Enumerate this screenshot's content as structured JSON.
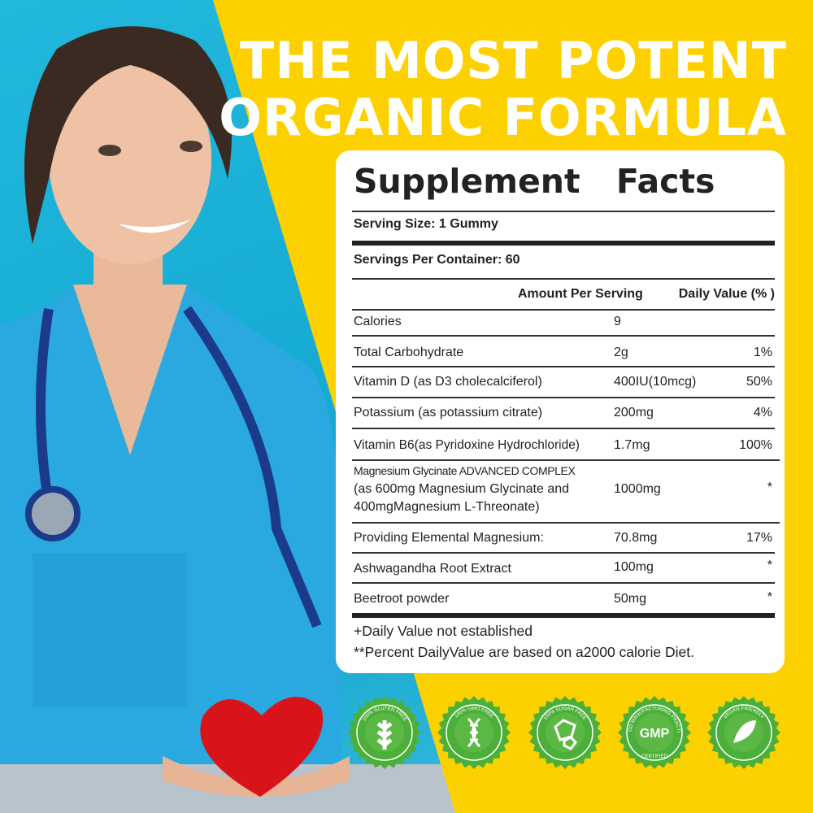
{
  "headline": {
    "line1": "THE MOST POTENT",
    "line2": "ORGANIC FORMULA"
  },
  "facts": {
    "title": "Supplement Facts",
    "serving_size": "Serving Size: 1 Gummy",
    "servings_per_container": "Servings Per Container: 60",
    "header_amount": "Amount Per Serving",
    "header_dv": "Daily Value (% )",
    "rows": [
      {
        "name": "Calories",
        "amount": "9",
        "dv": ""
      },
      {
        "name": "Total Carbohydrate",
        "amount": "2g",
        "dv": "1%"
      },
      {
        "name": "Vitamin D (as D3 cholecalciferol)",
        "amount": "400IU(10mcg)",
        "dv": "50%"
      },
      {
        "name": "Potassium (as potassium citrate)",
        "amount": "200mg",
        "dv": "4%"
      },
      {
        "name": "Vitamin B6(as Pyridoxine Hydrochloride)",
        "amount": "1.7mg",
        "dv": "100%"
      },
      {
        "name_line1": "Magnesium Glycinate ADVANCED COMPLEX",
        "name_line2": "(as 600mg Magnesium Glycinate and",
        "name_line3": "400mgMagnesium L-Threonate)",
        "amount": "1000mg",
        "dv": "*"
      },
      {
        "name": "Providing Elemental Magnesium:",
        "amount": "70.8mg",
        "dv": "17%"
      },
      {
        "name": "Ashwagandha Root Extract",
        "amount": "100mg",
        "dv": "*"
      },
      {
        "name": "Beetroot powder",
        "amount": "50mg",
        "dv": "*"
      }
    ],
    "footnote1": "+Daily Value not established",
    "footnote2": "**Percent DailyValue are based on a2000 calorie Diet."
  },
  "badges": [
    {
      "icon": "wheat-icon",
      "text": "100% GLUTEN FREE"
    },
    {
      "icon": "dna-icon",
      "text": "100% GMO FREE"
    },
    {
      "icon": "sugar-cube-icon",
      "text": "100% SUGAR FREE"
    },
    {
      "icon": "gmp-icon",
      "text": "GOOD MANUFACTURING PRACTICE",
      "center": "GMP",
      "bottom": "CERTIFIED"
    },
    {
      "icon": "leaf-icon",
      "text": "VEGAN FRIENDLY"
    }
  ],
  "colors": {
    "yellow": "#fdd100",
    "teal": "#1fb3d8",
    "badge_green": "#4caf3a"
  }
}
